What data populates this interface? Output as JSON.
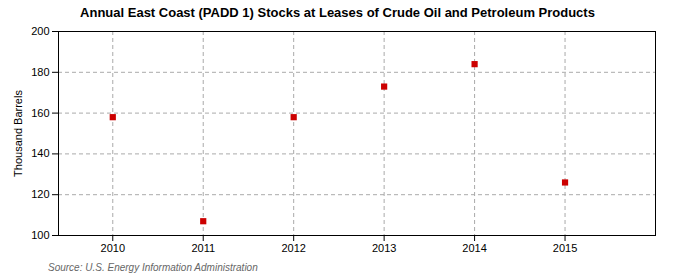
{
  "chart_data": {
    "type": "scatter",
    "title": "Annual East Coast (PADD 1) Stocks at Leases of Crude Oil and Petroleum Products",
    "ylabel": "Thousand Barrels",
    "source": "Source: U.S. Energy Information Administration",
    "x": [
      2010,
      2011,
      2012,
      2013,
      2014,
      2015
    ],
    "values": [
      158,
      107,
      158,
      173,
      184,
      126
    ],
    "xlim": [
      2009.4,
      2016.0
    ],
    "xticks": [
      2010,
      2011,
      2012,
      2013,
      2014,
      2015
    ],
    "ylim": [
      100,
      200
    ],
    "yticks": [
      100,
      120,
      140,
      160,
      180,
      200
    ],
    "color": "#cc0000",
    "marker": "square",
    "grid": true
  }
}
